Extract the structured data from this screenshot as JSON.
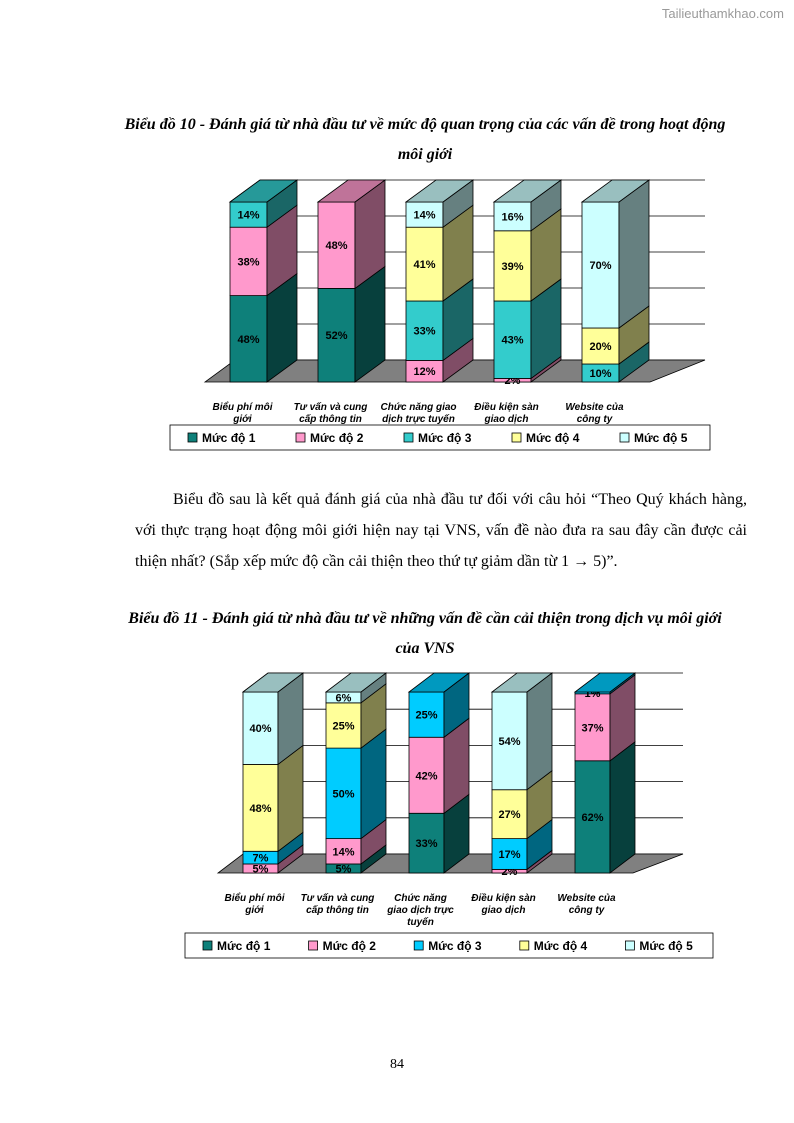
{
  "watermark": "Tailieuthamkhao.com",
  "chart1_title": "Biểu đồ 10 - Đánh giá từ nhà đầu tư về mức độ quan trọng của các vấn đề trong hoạt động môi giới",
  "paragraph": "Biểu đồ sau là kết quả đánh giá của nhà đầu tư đối với câu hỏi “Theo Quý khách hàng, với thực trạng hoạt động môi giới hiện nay tại VNS, vấn đề nào đưa ra sau đây cần được cải thiện nhất? (Sắp xếp mức độ cần cải thiện theo thứ tự giảm dần từ 1 → 5)”.",
  "chart2_title": "Biểu đồ 11 - Đánh giá từ nhà đầu tư về những vấn đề cần cải thiện trong dịch vụ môi giới của VNS",
  "page_number": "84",
  "chart_data": [
    {
      "type": "bar",
      "stacked": true,
      "title": "Biểu đồ 10 - Đánh giá từ nhà đầu tư về mức độ quan trọng của các vấn đề trong hoạt động môi giới",
      "categories": [
        [
          "Biểu phí môi",
          "giới"
        ],
        [
          "Tư vấn và cung",
          "cấp thông tin"
        ],
        [
          "Chức năng giao",
          "dịch trực tuyến"
        ],
        [
          "Điều kiện sàn",
          "giao dịch"
        ],
        [
          "Website của",
          "công ty"
        ]
      ],
      "series": [
        {
          "name": "Mức độ 1",
          "color": "#0e807a",
          "values": [
            48,
            52,
            0,
            0,
            0
          ]
        },
        {
          "name": "Mức độ 2",
          "color": "#ff99cc",
          "values": [
            38,
            48,
            12,
            2,
            0
          ]
        },
        {
          "name": "Mức độ 3",
          "color": "#33cccc",
          "values": [
            14,
            0,
            33,
            43,
            10
          ]
        },
        {
          "name": "Mức độ 4",
          "color": "#ffff99",
          "values": [
            0,
            0,
            41,
            39,
            20
          ]
        },
        {
          "name": "Mức độ 5",
          "color": "#ccffff",
          "values": [
            0,
            0,
            14,
            16,
            70
          ]
        }
      ],
      "ylim": [
        0,
        100
      ],
      "legend": "bottom"
    },
    {
      "type": "bar",
      "stacked": true,
      "title": "Biểu đồ 11 - Đánh giá từ nhà đầu tư về những vấn đề cần cải thiện trong dịch vụ môi giới của VNS",
      "categories": [
        [
          "Biểu phí môi",
          "giới"
        ],
        [
          "Tư vấn và cung",
          "cấp thông tin"
        ],
        [
          "Chức năng",
          "giao dịch trực",
          "tuyến"
        ],
        [
          "Điều kiện sàn",
          "giao dịch"
        ],
        [
          "Website của",
          "công ty"
        ]
      ],
      "series": [
        {
          "name": "Mức độ 1",
          "color": "#0e807a",
          "values": [
            0,
            5,
            33,
            0,
            62
          ]
        },
        {
          "name": "Mức độ 2",
          "color": "#ff99cc",
          "values": [
            5,
            14,
            42,
            2,
            37
          ]
        },
        {
          "name": "Mức độ 3",
          "color": "#00ccff",
          "values": [
            7,
            50,
            25,
            17,
            1
          ]
        },
        {
          "name": "Mức độ 4",
          "color": "#ffff99",
          "values": [
            48,
            25,
            0,
            27,
            0
          ]
        },
        {
          "name": "Mức độ 5",
          "color": "#ccffff",
          "values": [
            40,
            6,
            0,
            54,
            0
          ]
        }
      ],
      "ylim": [
        0,
        100
      ],
      "legend": "bottom"
    }
  ]
}
